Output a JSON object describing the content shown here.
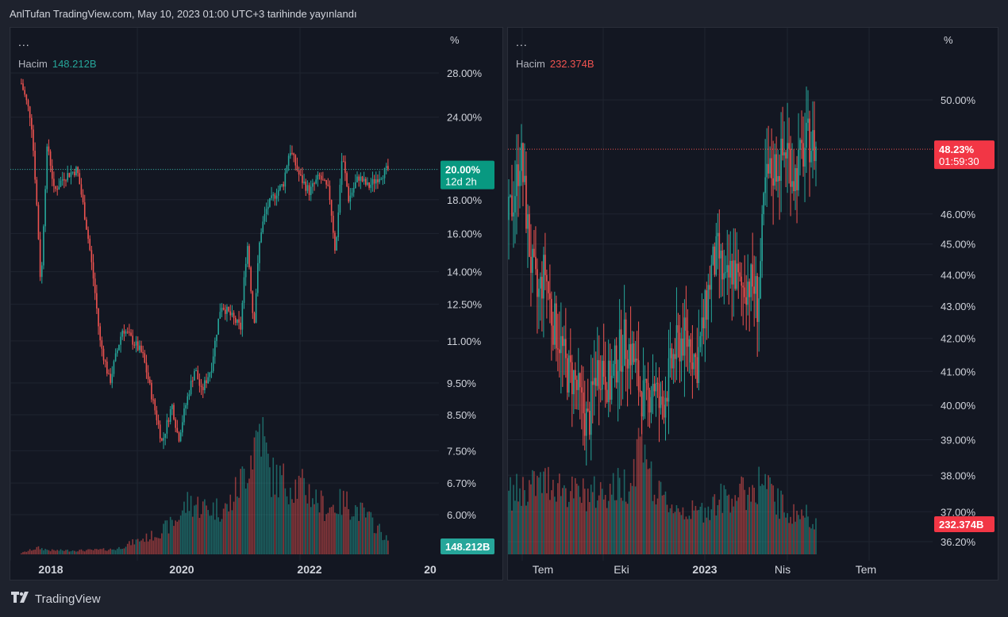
{
  "header": {
    "text": "AnlTufan TradingView.com, May 10, 2023 01:00 UTC+3 tarihinde yayınlandı"
  },
  "footer": {
    "brand": "TradingView",
    "logo_icon": "tradingview-logo-icon"
  },
  "colors": {
    "up": "#26a69a",
    "down": "#ef5350",
    "bg": "#131722",
    "grid": "#1f2430",
    "axis_text": "#d1d4dc"
  },
  "chart_data": [
    {
      "type": "candlestick",
      "title": "",
      "menu_dots": "...",
      "volume_label": "Hacim",
      "volume_value": "148.212B",
      "last_price_label": "20.00%",
      "countdown_label": "12d 2h",
      "volume_tag": "148.212B",
      "axis_unit": "%",
      "y_scale": "log",
      "y_ticks": [
        "28.00%",
        "24.00%",
        "20.00%",
        "18.00%",
        "16.00%",
        "14.00%",
        "12.50%",
        "11.00%",
        "9.50%",
        "8.50%",
        "7.50%",
        "6.70%",
        "6.00%"
      ],
      "y_tick_values": [
        28.0,
        24.0,
        20.0,
        18.0,
        16.0,
        14.0,
        12.5,
        11.0,
        9.5,
        8.5,
        7.5,
        6.7,
        6.0
      ],
      "x_ticks": [
        "2018",
        "2020",
        "2022",
        "20"
      ],
      "last_price": 20.0,
      "price_path": [
        [
          2017.55,
          27.0
        ],
        [
          2017.7,
          23.8
        ],
        [
          2017.85,
          13.0
        ],
        [
          2017.95,
          22.0
        ],
        [
          2018.05,
          18.5
        ],
        [
          2018.2,
          19.5
        ],
        [
          2018.4,
          20.0
        ],
        [
          2018.6,
          15.0
        ],
        [
          2018.75,
          11.0
        ],
        [
          2018.9,
          9.5
        ],
        [
          2019.0,
          10.5
        ],
        [
          2019.1,
          11.5
        ],
        [
          2019.25,
          11.0
        ],
        [
          2019.4,
          10.5
        ],
        [
          2019.55,
          9.0
        ],
        [
          2019.7,
          7.7
        ],
        [
          2019.85,
          8.8
        ],
        [
          2019.95,
          7.8
        ],
        [
          2020.05,
          8.7
        ],
        [
          2020.2,
          10.0
        ],
        [
          2020.3,
          9.2
        ],
        [
          2020.45,
          10.0
        ],
        [
          2020.6,
          12.5
        ],
        [
          2020.75,
          12.0
        ],
        [
          2020.9,
          11.5
        ],
        [
          2021.0,
          15.5
        ],
        [
          2021.1,
          11.5
        ],
        [
          2021.2,
          16.0
        ],
        [
          2021.3,
          17.5
        ],
        [
          2021.45,
          18.5
        ],
        [
          2021.55,
          19.0
        ],
        [
          2021.65,
          21.5
        ],
        [
          2021.8,
          19.5
        ],
        [
          2021.95,
          18.5
        ],
        [
          2022.1,
          19.5
        ],
        [
          2022.25,
          18.5
        ],
        [
          2022.35,
          14.8
        ],
        [
          2022.45,
          21.0
        ],
        [
          2022.55,
          18.0
        ],
        [
          2022.7,
          19.5
        ],
        [
          2022.85,
          18.8
        ],
        [
          2023.0,
          19.5
        ],
        [
          2023.15,
          20.0
        ]
      ],
      "volume_scale": "relative",
      "volume_path": [
        [
          2017.55,
          0.01
        ],
        [
          2017.8,
          0.05
        ],
        [
          2018.0,
          0.03
        ],
        [
          2018.5,
          0.03
        ],
        [
          2019.0,
          0.04
        ],
        [
          2019.3,
          0.1
        ],
        [
          2019.6,
          0.15
        ],
        [
          2019.9,
          0.25
        ],
        [
          2020.1,
          0.4
        ],
        [
          2020.4,
          0.35
        ],
        [
          2020.7,
          0.35
        ],
        [
          2020.9,
          0.55
        ],
        [
          2021.05,
          0.75
        ],
        [
          2021.2,
          1.0
        ],
        [
          2021.35,
          0.6
        ],
        [
          2021.6,
          0.55
        ],
        [
          2021.9,
          0.5
        ],
        [
          2022.2,
          0.35
        ],
        [
          2022.5,
          0.4
        ],
        [
          2022.8,
          0.3
        ],
        [
          2023.0,
          0.2
        ],
        [
          2023.15,
          0.1
        ]
      ]
    },
    {
      "type": "candlestick",
      "title": "",
      "menu_dots": "...",
      "volume_label": "Hacim",
      "volume_value": "232.374B",
      "last_price_label": "48.23%",
      "countdown_label": "01:59:30",
      "volume_tag": "232.374B",
      "axis_unit": "%",
      "y_scale": "log",
      "y_ticks": [
        "50.00%",
        "46.00%",
        "45.00%",
        "44.00%",
        "43.00%",
        "42.00%",
        "41.00%",
        "40.00%",
        "39.00%",
        "38.00%",
        "37.00%",
        "36.20%"
      ],
      "y_tick_values": [
        50.0,
        46.0,
        45.0,
        44.0,
        43.0,
        42.0,
        41.0,
        40.0,
        39.0,
        38.0,
        37.0,
        36.2
      ],
      "x_ticks": [
        "Tem",
        "Eki",
        "2023",
        "Nis",
        "Tem"
      ],
      "last_price": 48.23,
      "price_path": [
        [
          0.0,
          45.8
        ],
        [
          0.1,
          47.0
        ],
        [
          0.16,
          48.2
        ],
        [
          0.3,
          44.5
        ],
        [
          0.4,
          43.2
        ],
        [
          0.5,
          44.2
        ],
        [
          0.6,
          42.6
        ],
        [
          0.7,
          42.0
        ],
        [
          0.8,
          41.0
        ],
        [
          0.9,
          40.8
        ],
        [
          1.0,
          40.0
        ],
        [
          1.1,
          39.4
        ],
        [
          1.2,
          41.0
        ],
        [
          1.3,
          41.2
        ],
        [
          1.4,
          40.5
        ],
        [
          1.5,
          41.4
        ],
        [
          1.6,
          41.9
        ],
        [
          1.7,
          41.6
        ],
        [
          1.8,
          40.6
        ],
        [
          1.9,
          40.0
        ],
        [
          2.0,
          40.8
        ],
        [
          2.1,
          39.8
        ],
        [
          2.2,
          40.7
        ],
        [
          2.3,
          41.6
        ],
        [
          2.4,
          42.0
        ],
        [
          2.5,
          41.9
        ],
        [
          2.6,
          41.2
        ],
        [
          2.7,
          42.5
        ],
        [
          2.8,
          44.1
        ],
        [
          2.9,
          44.7
        ],
        [
          3.0,
          43.5
        ],
        [
          3.1,
          44.3
        ],
        [
          3.2,
          43.5
        ],
        [
          3.3,
          43.8
        ],
        [
          3.4,
          43.6
        ],
        [
          3.45,
          43.0
        ],
        [
          3.5,
          45.0
        ],
        [
          3.55,
          47.0
        ],
        [
          3.65,
          47.5
        ],
        [
          3.75,
          47.8
        ],
        [
          3.85,
          48.3
        ],
        [
          3.95,
          47.2
        ],
        [
          4.05,
          48.0
        ],
        [
          4.15,
          48.6
        ],
        [
          4.25,
          48.23
        ]
      ],
      "volume_path": [
        [
          0.0,
          0.45
        ],
        [
          0.3,
          0.5
        ],
        [
          0.6,
          0.55
        ],
        [
          0.9,
          0.45
        ],
        [
          1.2,
          0.45
        ],
        [
          1.5,
          0.5
        ],
        [
          1.7,
          0.55
        ],
        [
          1.85,
          1.0
        ],
        [
          2.0,
          0.45
        ],
        [
          2.3,
          0.35
        ],
        [
          2.6,
          0.3
        ],
        [
          2.9,
          0.4
        ],
        [
          3.1,
          0.45
        ],
        [
          3.3,
          0.45
        ],
        [
          3.5,
          0.55
        ],
        [
          3.7,
          0.4
        ],
        [
          3.9,
          0.3
        ],
        [
          4.1,
          0.3
        ],
        [
          4.25,
          0.25
        ]
      ]
    }
  ]
}
